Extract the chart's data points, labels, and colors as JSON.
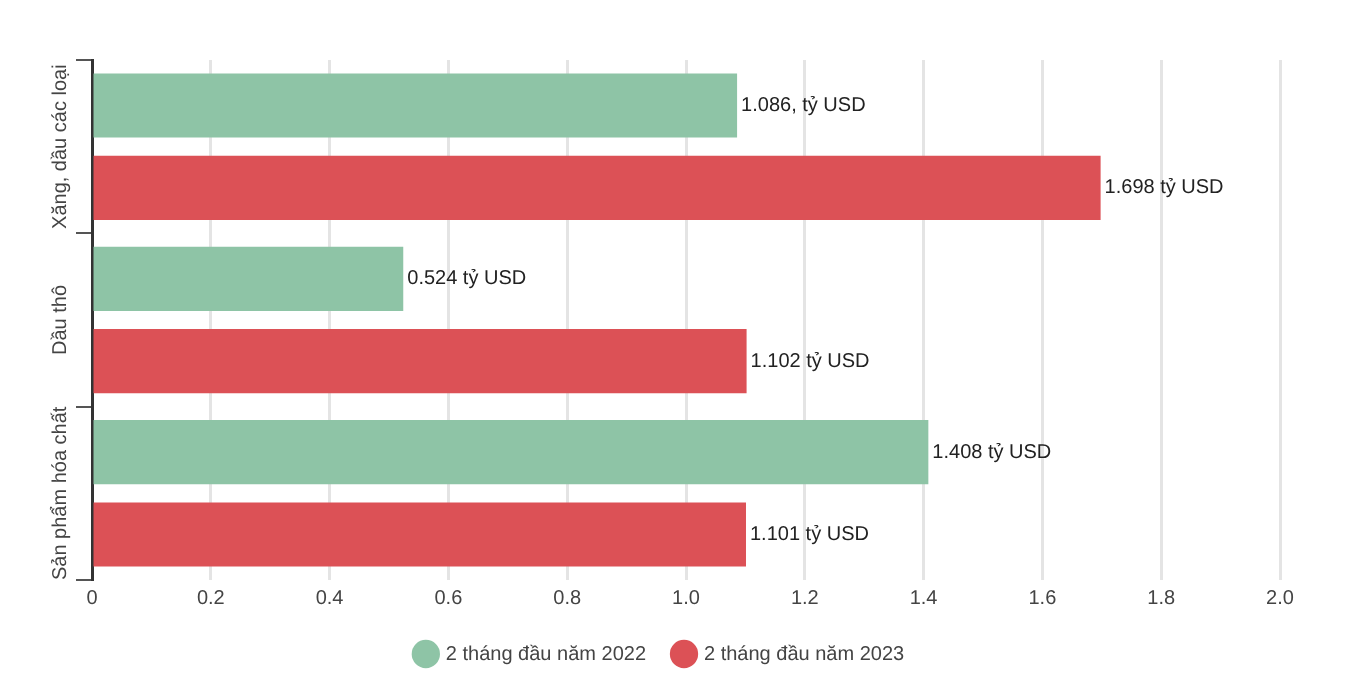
{
  "chart_data": {
    "type": "bar",
    "orientation": "horizontal",
    "categories": [
      "Xăng, dầu các loại",
      "Dầu thô",
      "Sản phẩm hóa chất"
    ],
    "series": [
      {
        "name": "2 tháng đầu năm 2022",
        "color": "#8ec4a6",
        "values": [
          1.086,
          0.524,
          1.408
        ],
        "value_labels": [
          "1.086, tỷ USD",
          "0.524 tỷ USD",
          "1.408 tỷ USD"
        ]
      },
      {
        "name": "2 tháng đầu năm 2023",
        "color": "#dc5156",
        "values": [
          1.698,
          1.102,
          1.101
        ],
        "value_labels": [
          "1.698 tỷ USD",
          "1.102 tỷ USD",
          "1.101 tỷ USD"
        ]
      }
    ],
    "xlim": [
      0,
      2.0
    ],
    "xticks": [
      0,
      0.2,
      0.4,
      0.6,
      0.8,
      {
        "value": 1.0,
        "label": "1.0"
      },
      1.2,
      1.4,
      1.6,
      1.8,
      {
        "value": 2.0,
        "label": "2.0"
      }
    ],
    "grid": "x",
    "legend": "bottom"
  }
}
